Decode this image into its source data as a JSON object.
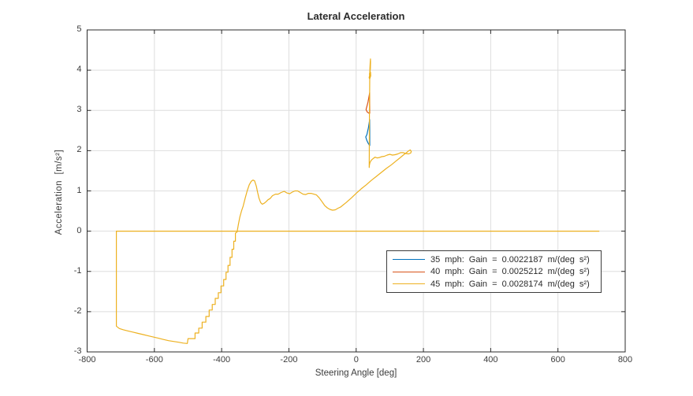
{
  "figure": {
    "background": "#ffffff"
  },
  "chart_data": {
    "type": "line",
    "title": "Lateral Acceleration",
    "xlabel": "Steering Angle [deg]",
    "ylabel": "Acceleration  [m/s²]",
    "xlim": [
      -800,
      800
    ],
    "ylim": [
      -3,
      5
    ],
    "x_ticks": [
      -800,
      -600,
      -400,
      -200,
      0,
      200,
      400,
      600,
      800
    ],
    "y_ticks": [
      -3,
      -2,
      -1,
      0,
      1,
      2,
      3,
      4,
      5
    ],
    "grid": true,
    "grid_color": "#dedede",
    "axis_color": "#2b2b2b",
    "legend_position": "inside-lower-right",
    "series": [
      {
        "name": "35 mph",
        "label": "35 mph: Gain = 0.0022187 m/(deg s²)",
        "color": "#0072BD",
        "points": [
          [
            40.5,
            2.12
          ],
          [
            40.4,
            2.5
          ],
          [
            40.2,
            2.77
          ],
          [
            36.5,
            2.57
          ],
          [
            32,
            2.4
          ],
          [
            28.5,
            2.34
          ],
          [
            31.5,
            2.26
          ],
          [
            35.5,
            2.19
          ],
          [
            40.5,
            2.12
          ]
        ]
      },
      {
        "name": "40 mph",
        "label": "40 mph: Gain = 0.0025212 m/(deg s²)",
        "color": "#D95319",
        "points": [
          [
            40.5,
            2.92
          ],
          [
            40.3,
            3.2
          ],
          [
            40.1,
            3.44
          ],
          [
            35,
            3.2
          ],
          [
            29.5,
            3.02
          ],
          [
            33,
            2.96
          ],
          [
            36.5,
            2.94
          ],
          [
            40.5,
            2.92
          ]
        ]
      },
      {
        "name": "45 mph",
        "label": "45 mph: Gain = 0.0028174 m/(deg s²)",
        "color": "#EDB120",
        "points": [
          [
            723,
            0
          ],
          [
            -713,
            0
          ],
          [
            -713,
            -2.36
          ],
          [
            -704,
            -2.42
          ],
          [
            -692,
            -2.45
          ],
          [
            -678,
            -2.48
          ],
          [
            -663,
            -2.51
          ],
          [
            -648,
            -2.54
          ],
          [
            -633,
            -2.57
          ],
          [
            -618,
            -2.6
          ],
          [
            -603,
            -2.63
          ],
          [
            -588,
            -2.66
          ],
          [
            -573,
            -2.69
          ],
          [
            -558,
            -2.72
          ],
          [
            -543,
            -2.74
          ],
          [
            -528,
            -2.76
          ],
          [
            -514,
            -2.78
          ],
          [
            -502,
            -2.79
          ],
          [
            -500,
            -2.67
          ],
          [
            -479,
            -2.67
          ],
          [
            -479,
            -2.53
          ],
          [
            -468,
            -2.53
          ],
          [
            -468,
            -2.41
          ],
          [
            -458,
            -2.41
          ],
          [
            -458,
            -2.26
          ],
          [
            -447,
            -2.26
          ],
          [
            -447,
            -2.12
          ],
          [
            -437,
            -2.12
          ],
          [
            -437,
            -1.96
          ],
          [
            -428,
            -1.96
          ],
          [
            -428,
            -1.82
          ],
          [
            -419,
            -1.82
          ],
          [
            -419,
            -1.67
          ],
          [
            -410,
            -1.67
          ],
          [
            -410,
            -1.53
          ],
          [
            -402,
            -1.53
          ],
          [
            -402,
            -1.36
          ],
          [
            -394,
            -1.36
          ],
          [
            -394,
            -1.2
          ],
          [
            -387,
            -1.2
          ],
          [
            -387,
            -1.02
          ],
          [
            -381,
            -1.02
          ],
          [
            -381,
            -0.85
          ],
          [
            -375,
            -0.85
          ],
          [
            -375,
            -0.65
          ],
          [
            -369,
            -0.65
          ],
          [
            -369,
            -0.45
          ],
          [
            -364,
            -0.45
          ],
          [
            -364,
            -0.25
          ],
          [
            -359,
            -0.25
          ],
          [
            -359,
            -0.05
          ],
          [
            -354,
            -0.02
          ],
          [
            -350,
            0.18
          ],
          [
            -346,
            0.35
          ],
          [
            -341,
            0.5
          ],
          [
            -336,
            0.62
          ],
          [
            -330,
            0.82
          ],
          [
            -324,
            1.0
          ],
          [
            -318,
            1.15
          ],
          [
            -312,
            1.24
          ],
          [
            -307,
            1.27
          ],
          [
            -302,
            1.25
          ],
          [
            -297,
            1.12
          ],
          [
            -293,
            0.96
          ],
          [
            -289,
            0.82
          ],
          [
            -284,
            0.71
          ],
          [
            -279,
            0.67
          ],
          [
            -274,
            0.69
          ],
          [
            -268,
            0.73
          ],
          [
            -262,
            0.78
          ],
          [
            -256,
            0.81
          ],
          [
            -249,
            0.88
          ],
          [
            -240,
            0.92
          ],
          [
            -232,
            0.92
          ],
          [
            -223,
            0.96
          ],
          [
            -214,
            0.99
          ],
          [
            -206,
            0.95
          ],
          [
            -198,
            0.93
          ],
          [
            -190,
            0.97
          ],
          [
            -182,
            1.0
          ],
          [
            -174,
            1.0
          ],
          [
            -166,
            0.96
          ],
          [
            -158,
            0.92
          ],
          [
            -150,
            0.91
          ],
          [
            -142,
            0.94
          ],
          [
            -134,
            0.94
          ],
          [
            -126,
            0.92
          ],
          [
            -118,
            0.9
          ],
          [
            -110,
            0.83
          ],
          [
            -102,
            0.74
          ],
          [
            -94,
            0.64
          ],
          [
            -86,
            0.58
          ],
          [
            -78,
            0.54
          ],
          [
            -70,
            0.52
          ],
          [
            -62,
            0.53
          ],
          [
            -54,
            0.57
          ],
          [
            -46,
            0.6
          ],
          [
            -30,
            0.71
          ],
          [
            -15,
            0.82
          ],
          [
            0,
            0.94
          ],
          [
            15,
            1.05
          ],
          [
            30,
            1.15
          ],
          [
            45,
            1.26
          ],
          [
            60,
            1.36
          ],
          [
            75,
            1.46
          ],
          [
            90,
            1.56
          ],
          [
            105,
            1.65
          ],
          [
            118,
            1.74
          ],
          [
            130,
            1.82
          ],
          [
            140,
            1.89
          ],
          [
            148,
            1.94
          ],
          [
            155,
            1.99
          ],
          [
            161,
            2.02
          ],
          [
            164,
            1.98
          ],
          [
            162,
            1.94
          ],
          [
            156,
            1.92
          ],
          [
            148,
            1.93
          ],
          [
            140,
            1.95
          ],
          [
            132,
            1.95
          ],
          [
            124,
            1.92
          ],
          [
            116,
            1.9
          ],
          [
            108,
            1.89
          ],
          [
            100,
            1.91
          ],
          [
            92,
            1.89
          ],
          [
            84,
            1.86
          ],
          [
            76,
            1.85
          ],
          [
            69,
            1.83
          ],
          [
            62,
            1.82
          ],
          [
            56,
            1.84
          ],
          [
            50,
            1.8
          ],
          [
            45,
            1.76
          ],
          [
            41,
            1.7
          ],
          [
            39.2,
            1.63
          ],
          [
            38.8,
            1.58
          ],
          [
            39.0,
            1.9
          ],
          [
            39.3,
            2.4
          ],
          [
            39.6,
            2.9
          ],
          [
            39.9,
            3.3
          ],
          [
            40.2,
            3.6
          ],
          [
            40.5,
            3.85
          ],
          [
            41,
            4.05
          ],
          [
            41.8,
            4.2
          ],
          [
            42.5,
            4.28
          ],
          [
            42.8,
            4.2
          ],
          [
            42.2,
            4.04
          ],
          [
            41,
            3.92
          ],
          [
            38.5,
            3.81
          ],
          [
            40.3,
            3.78
          ],
          [
            43.3,
            3.86
          ],
          [
            42.8,
            3.95
          ],
          [
            40.8,
            3.96
          ],
          [
            39.3,
            3.89
          ]
        ]
      }
    ]
  },
  "legend": {
    "entries": [
      "35 mph: Gain = 0.0022187 m/(deg s²)",
      "40 mph: Gain = 0.0025212 m/(deg s²)",
      "45 mph: Gain = 0.0028174 m/(deg s²)"
    ]
  }
}
